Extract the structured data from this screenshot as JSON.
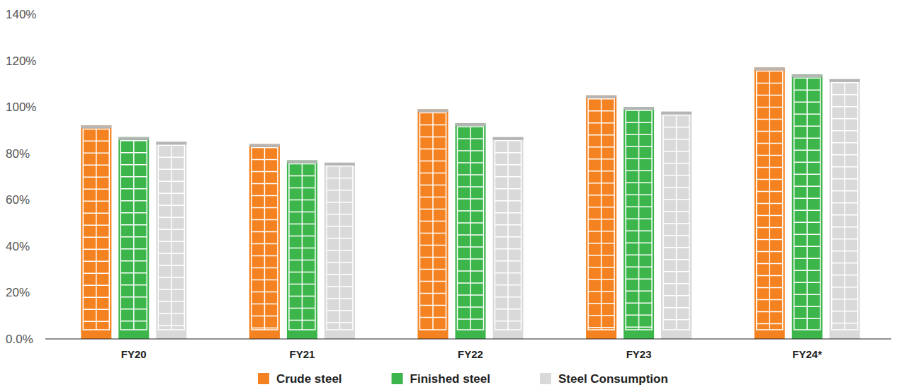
{
  "chart_data": {
    "type": "bar",
    "categories": [
      "FY20",
      "FY21",
      "FY22",
      "FY23",
      "FY24*"
    ],
    "series": [
      {
        "name": "Crude steel",
        "color": "#f58220",
        "values": [
          92,
          84,
          99,
          105,
          117
        ]
      },
      {
        "name": "Finished steel",
        "color": "#3cb54a",
        "values": [
          87,
          77,
          93,
          100,
          114
        ]
      },
      {
        "name": "Steel Consumption",
        "color": "#d9d9d9",
        "values": [
          85,
          76,
          87,
          98,
          112
        ]
      }
    ],
    "ylim": [
      0,
      140
    ],
    "yticks": [
      {
        "value": 0,
        "label": "0.0%"
      },
      {
        "value": 20,
        "label": "20%"
      },
      {
        "value": 40,
        "label": "40%"
      },
      {
        "value": 60,
        "label": "60%"
      },
      {
        "value": 80,
        "label": "80%"
      },
      {
        "value": 100,
        "label": "100%"
      },
      {
        "value": 120,
        "label": "120%"
      },
      {
        "value": 140,
        "label": "140%"
      }
    ],
    "grid": false,
    "legend": "bottom"
  }
}
